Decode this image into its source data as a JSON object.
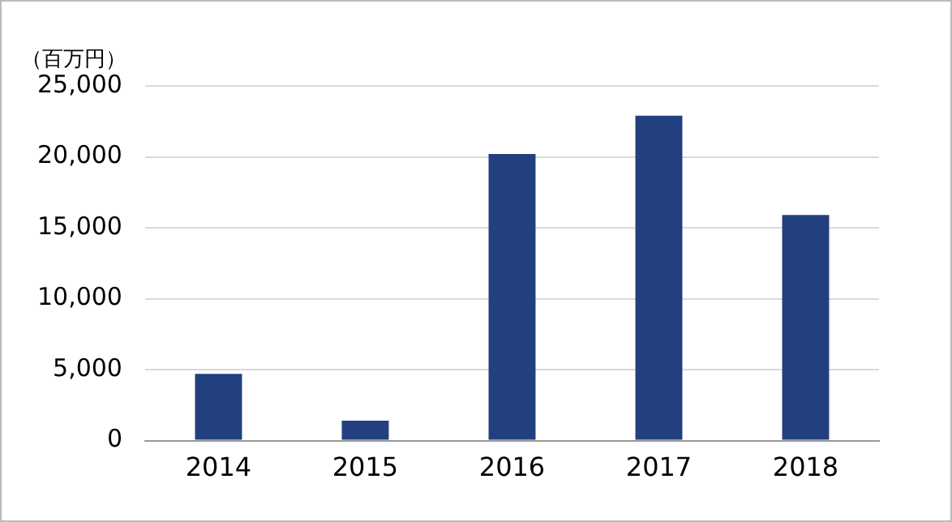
{
  "chart_data": {
    "type": "bar",
    "ylabel": "（百万円）",
    "categories": [
      "2014",
      "2015",
      "2016",
      "2017",
      "2018"
    ],
    "series": [
      {
        "color": "#22407f",
        "values": [
          4700,
          1400,
          20200,
          22900,
          15900
        ]
      }
    ],
    "ylim": [
      0,
      25000
    ],
    "yticks": [
      0,
      {
        "value": 5000,
        "label": "5,000"
      },
      {
        "value": 10000,
        "label": "10,000"
      },
      {
        "value": 15000,
        "label": "15,000"
      },
      {
        "value": 20000,
        "label": "20,000"
      },
      {
        "value": 25000,
        "label": "25,000"
      }
    ],
    "grid": "y",
    "legend": false
  }
}
